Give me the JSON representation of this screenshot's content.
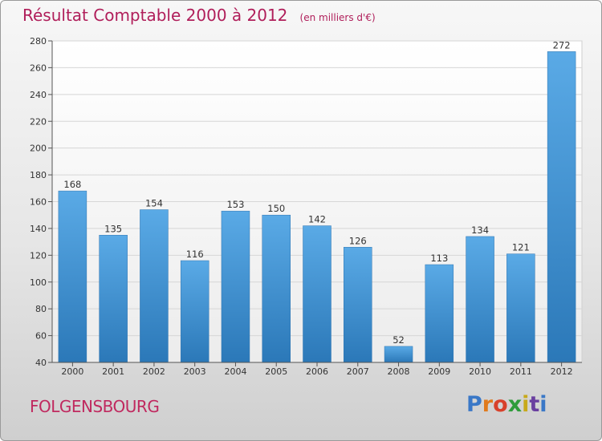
{
  "header": {
    "title": "Résultat Comptable 2000 à 2012",
    "subtitle": "(en milliers d'€)"
  },
  "footer": {
    "commune": "FOLGENSBOURG",
    "logo": [
      "P",
      "r",
      "o",
      "x",
      "i",
      "t",
      "i"
    ]
  },
  "colors": {
    "title": "#b01e5a",
    "bar_top": "#5aaae6",
    "bar_bottom": "#2b78b8"
  },
  "chart_data": {
    "type": "bar",
    "title": "Résultat Comptable 2000 à 2012",
    "subtitle": "(en milliers d'€)",
    "categories": [
      "2000",
      "2001",
      "2002",
      "2003",
      "2004",
      "2005",
      "2006",
      "2007",
      "2008",
      "2009",
      "2010",
      "2011",
      "2012"
    ],
    "values": [
      168,
      135,
      154,
      116,
      153,
      150,
      142,
      126,
      52,
      113,
      134,
      121,
      272
    ],
    "ylim": [
      40,
      280
    ],
    "yticks": [
      40,
      60,
      80,
      100,
      120,
      140,
      160,
      180,
      200,
      220,
      240,
      260,
      280
    ],
    "xlabel": "",
    "ylabel": "",
    "grid": true
  }
}
